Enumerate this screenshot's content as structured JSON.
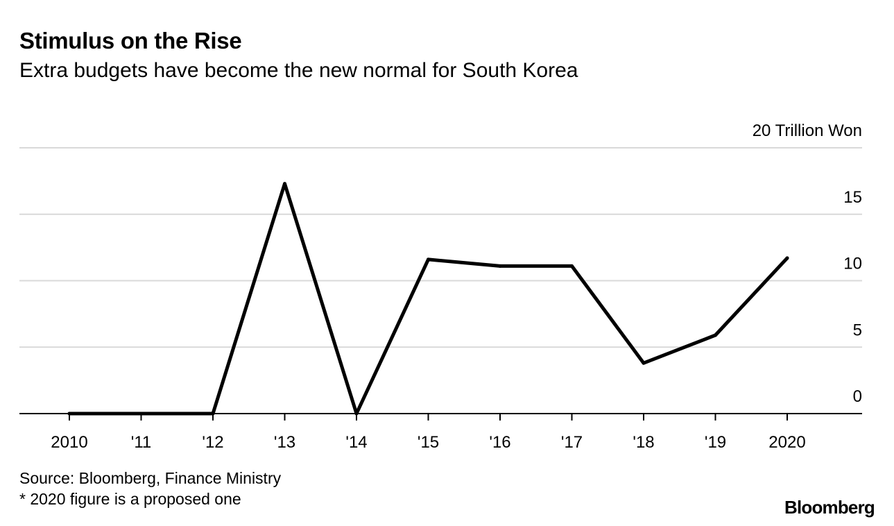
{
  "chart_data": {
    "type": "line",
    "title": "Stimulus on the Rise",
    "subtitle": "Extra budgets have become the new normal for South Korea",
    "unit_label": "20 Trillion Won",
    "categories": [
      "2010",
      "'11",
      "'12",
      "'13",
      "'14",
      "'15",
      "'16",
      "'17",
      "'18",
      "'19",
      "2020"
    ],
    "series": [
      {
        "name": "Extra budget",
        "values": [
          0,
          0,
          0,
          17.3,
          0,
          11.6,
          11.1,
          11.1,
          3.8,
          5.9,
          11.7
        ]
      }
    ],
    "yticks": [
      {
        "value": 0,
        "label": "0"
      },
      {
        "value": 5,
        "label": "5"
      },
      {
        "value": 10,
        "label": "10"
      },
      {
        "value": 15,
        "label": "15"
      },
      {
        "value": 20,
        "label": "20 Trillion Won"
      }
    ],
    "ylim": [
      0,
      20
    ],
    "grid": true,
    "line_color": "#000000",
    "grid_color": "#d9d9d9",
    "source": "Source: Bloomberg, Finance Ministry",
    "footnote": "* 2020 figure is a proposed one",
    "brand": "Bloomberg"
  }
}
